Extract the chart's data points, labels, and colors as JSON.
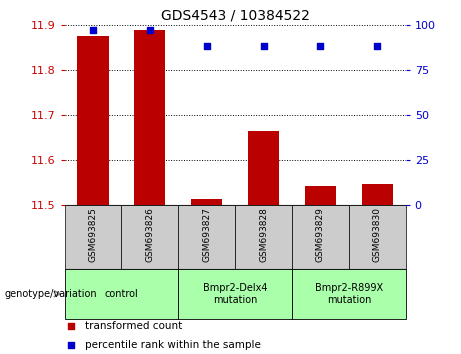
{
  "title": "GDS4543 / 10384522",
  "samples": [
    "GSM693825",
    "GSM693826",
    "GSM693827",
    "GSM693828",
    "GSM693829",
    "GSM693830"
  ],
  "transformed_counts": [
    11.875,
    11.888,
    11.515,
    11.665,
    11.543,
    11.548
  ],
  "percentile_ranks": [
    97,
    97,
    88,
    88,
    88,
    88
  ],
  "ylim_left": [
    11.5,
    11.9
  ],
  "ylim_right": [
    0,
    100
  ],
  "yticks_left": [
    11.5,
    11.6,
    11.7,
    11.8,
    11.9
  ],
  "yticks_right": [
    0,
    25,
    50,
    75,
    100
  ],
  "bar_color": "#bb0000",
  "dot_color": "#0000cc",
  "bar_bottom": 11.5,
  "groups": [
    {
      "label": "control",
      "indices": [
        0,
        1
      ],
      "color": "#aaffaa"
    },
    {
      "label": "Bmpr2-Delx4\nmutation",
      "indices": [
        2,
        3
      ],
      "color": "#aaffaa"
    },
    {
      "label": "Bmpr2-R899X\nmutation",
      "indices": [
        4,
        5
      ],
      "color": "#aaffaa"
    }
  ],
  "legend_items": [
    {
      "label": "transformed count",
      "color": "#bb0000"
    },
    {
      "label": "percentile rank within the sample",
      "color": "#0000cc"
    }
  ],
  "genotype_label": "genotype/variation",
  "tick_bg_color": "#cccccc",
  "plot_bg_color": "#ffffff",
  "right_axis_color": "#0000cc",
  "left_axis_color": "#cc0000"
}
